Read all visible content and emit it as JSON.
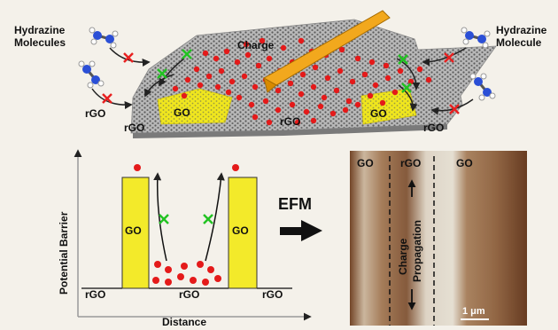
{
  "labels": {
    "hydrazine_left": [
      "Hydrazine",
      "Molecules"
    ],
    "hydrazine_right": [
      "Hydrazine",
      "Molecule"
    ],
    "charge": "Charge",
    "rgo": "rGO",
    "go": "GO",
    "potential_barrier": "Potential Barrier",
    "distance": "Distance",
    "efm": "EFM",
    "charge_propagation": [
      "Charge",
      "Propagation"
    ],
    "scale_bar": "1 μm"
  },
  "colors": {
    "background": "#f4f1ea",
    "graphene": "#8f8f8f",
    "go_yellow": "#f3ea2a",
    "charge_red": "#e41a1a",
    "cross_red": "#e82020",
    "cross_green": "#22c222",
    "probe": "#f2a81d",
    "efm_brown": "#9a6a47"
  },
  "icons": [
    "hydrazine-molecule-icon",
    "cross-mark-icon",
    "efm-probe-icon",
    "right-arrow-icon"
  ]
}
